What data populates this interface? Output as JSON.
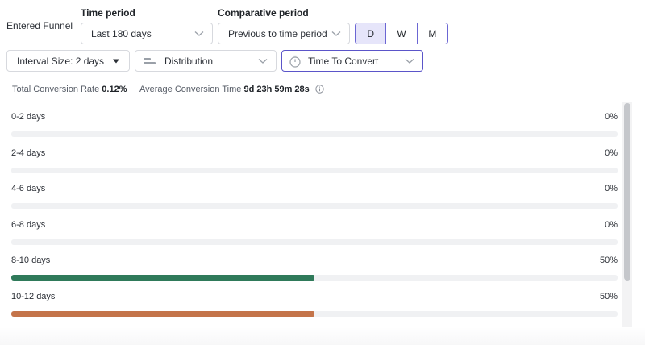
{
  "funnel": {
    "label": "Entered Funnel"
  },
  "time_period": {
    "label": "Time period",
    "value": "Last 180 days"
  },
  "comparative_period": {
    "label": "Comparative period",
    "value": "Previous to time period"
  },
  "granularity": {
    "options": [
      "D",
      "W",
      "M"
    ],
    "selected": "D"
  },
  "interval": {
    "value": "Interval Size: 2 days"
  },
  "view_mode": {
    "value": "Distribution",
    "icon": "bar-list-icon"
  },
  "metric": {
    "value": "Time To Convert",
    "icon": "stopwatch-icon"
  },
  "summary": {
    "conversion_rate_label": "Total Conversion Rate",
    "conversion_rate_value": "0.12%",
    "avg_time_label": "Average Conversion Time",
    "avg_time_value": "9d 23h 59m 28s"
  },
  "distribution": [
    {
      "label": "0-2 days",
      "percent_text": "0%",
      "fraction": 0,
      "color": "#2f7a5a"
    },
    {
      "label": "2-4 days",
      "percent_text": "0%",
      "fraction": 0,
      "color": "#2f7a5a"
    },
    {
      "label": "4-6 days",
      "percent_text": "0%",
      "fraction": 0,
      "color": "#2f7a5a"
    },
    {
      "label": "6-8 days",
      "percent_text": "0%",
      "fraction": 0,
      "color": "#2f7a5a"
    },
    {
      "label": "8-10 days",
      "percent_text": "50%",
      "fraction": 0.5,
      "color": "#2f7a5a"
    },
    {
      "label": "10-12 days",
      "percent_text": "50%",
      "fraction": 0.5,
      "color": "#c4744a"
    }
  ],
  "colors": {
    "accent": "#5b55c9",
    "selected_bg": "#e6e5fa"
  }
}
